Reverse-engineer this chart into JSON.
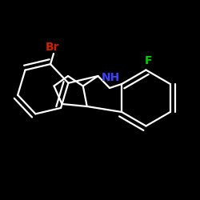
{
  "background_color": "#000000",
  "bond_color": "#ffffff",
  "bond_width": 1.6,
  "font_size_labels": 10,
  "atoms": {
    "N": {
      "label": "NH",
      "color": "#4040ff"
    },
    "F": {
      "label": "F",
      "color": "#00cc00"
    },
    "Br": {
      "label": "Br",
      "color": "#cc2200"
    }
  }
}
